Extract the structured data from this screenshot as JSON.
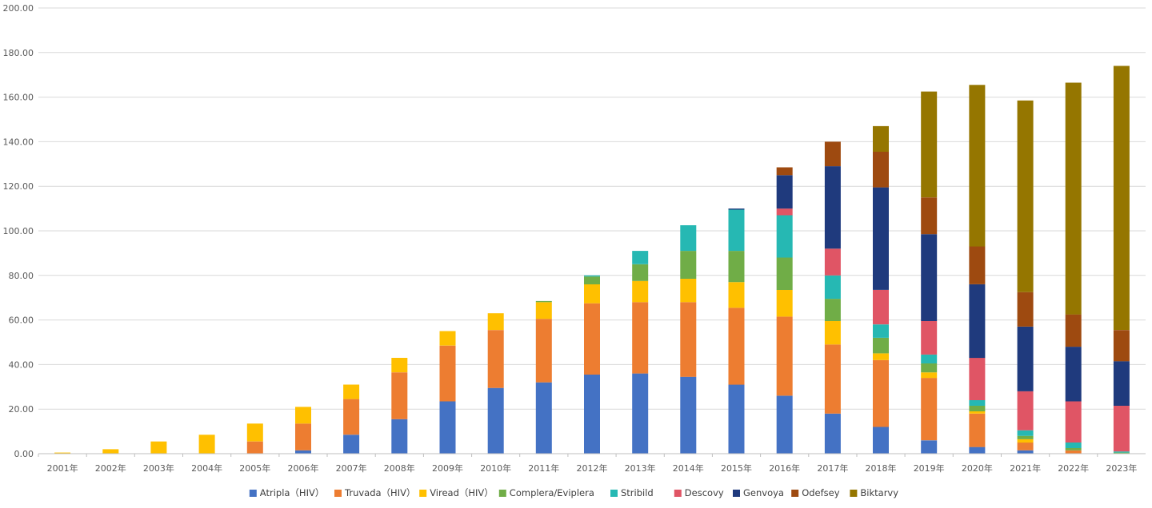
{
  "chart_data": {
    "type": "bar",
    "stacked": true,
    "title": "",
    "xlabel": "",
    "ylabel": "",
    "ylim": [
      0,
      200
    ],
    "yticks": [
      "0.00",
      "20.00",
      "40.00",
      "60.00",
      "80.00",
      "100.00",
      "120.00",
      "140.00",
      "160.00",
      "180.00",
      "200.00"
    ],
    "grid": true,
    "legend_position": "bottom",
    "categories": [
      "2001年",
      "2002年",
      "2003年",
      "2004年",
      "2005年",
      "2006年",
      "2007年",
      "2008年",
      "2009年",
      "2010年",
      "2011年",
      "2012年",
      "2013年",
      "2014年",
      "2015年",
      "2016年",
      "2017年",
      "2018年",
      "2019年",
      "2020年",
      "2021年",
      "2022年",
      "2023年"
    ],
    "series": [
      {
        "name": "Atripla（HIV）",
        "color": "#4472C4",
        "values": [
          0,
          0,
          0,
          0,
          0,
          1.5,
          8.5,
          15.5,
          23.5,
          29.5,
          32,
          35.5,
          36,
          34.5,
          31,
          26,
          18,
          12,
          6,
          3,
          1.5,
          0,
          0
        ]
      },
      {
        "name": "Truvada（HIV）",
        "color": "#ED7D31",
        "values": [
          0,
          0,
          0,
          0,
          5.5,
          12,
          16,
          21,
          25,
          26,
          28.5,
          32,
          32,
          33.5,
          34.5,
          35.5,
          31,
          30,
          28,
          15,
          3.5,
          1.5,
          0
        ]
      },
      {
        "name": "Viread（HIV）",
        "color": "#FFC000",
        "values": [
          0.5,
          2,
          5.5,
          8.5,
          8,
          7.5,
          6.5,
          6.5,
          6.5,
          7.5,
          7.5,
          8.5,
          9.5,
          10.5,
          11.5,
          12,
          10.5,
          3,
          2.5,
          1,
          1.5,
          0,
          0
        ]
      },
      {
        "name": "Complera/Eviplera",
        "color": "#70AD47",
        "values": [
          0,
          0,
          0,
          0,
          0,
          0,
          0,
          0,
          0,
          0,
          0.5,
          3.5,
          7.5,
          12.5,
          14,
          14.5,
          10,
          7,
          4,
          2.5,
          1.5,
          1,
          0.5
        ]
      },
      {
        "name": "Stribild",
        "color": "#26B8B3",
        "values": [
          0,
          0,
          0,
          0,
          0,
          0,
          0,
          0,
          0,
          0,
          0,
          0.5,
          6,
          11.5,
          18.5,
          19,
          10.5,
          6,
          4,
          2.5,
          2.5,
          2.5,
          0.5
        ]
      },
      {
        "name": "Descovy",
        "color": "#E05565",
        "values": [
          0,
          0,
          0,
          0,
          0,
          0,
          0,
          0,
          0,
          0,
          0,
          0,
          0,
          0,
          0,
          3,
          12,
          15.5,
          15,
          19,
          17.5,
          18.5,
          20.5
        ]
      },
      {
        "name": "Genvoya",
        "color": "#1F3A7D",
        "values": [
          0,
          0,
          0,
          0,
          0,
          0,
          0,
          0,
          0,
          0,
          0,
          0,
          0,
          0,
          0.5,
          15,
          37,
          46,
          39,
          33,
          29,
          24.5,
          20
        ]
      },
      {
        "name": "Odefsey",
        "color": "#9E4A10",
        "values": [
          0,
          0,
          0,
          0,
          0,
          0,
          0,
          0,
          0,
          0,
          0,
          0,
          0,
          0,
          0,
          3.5,
          11,
          16,
          16.5,
          17,
          15.5,
          14.5,
          14
        ]
      },
      {
        "name": "Biktarvy",
        "color": "#957600",
        "values": [
          0,
          0,
          0,
          0,
          0,
          0,
          0,
          0,
          0,
          0,
          0,
          0,
          0,
          0,
          0,
          0,
          0,
          11.5,
          47.5,
          72.5,
          86,
          104,
          118.5
        ]
      }
    ]
  }
}
